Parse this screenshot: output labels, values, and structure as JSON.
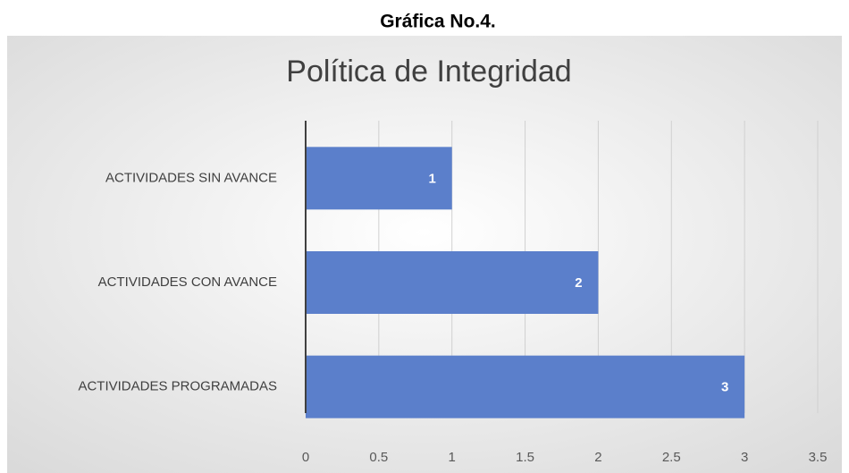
{
  "heading": "Gráfica No.4.",
  "chart_data": {
    "type": "bar",
    "orientation": "horizontal",
    "title": "Política de Integridad",
    "categories": [
      "ACTIVIDADES SIN AVANCE",
      "ACTIVIDADES CON AVANCE",
      "ACTIVIDADES PROGRAMADAS"
    ],
    "values": [
      1,
      2,
      3
    ],
    "color": "#5b7fcb",
    "xlim": [
      0,
      3.5
    ],
    "xticks": [
      0,
      0.5,
      1,
      1.5,
      2,
      2.5,
      3,
      3.5
    ],
    "grid": true
  }
}
